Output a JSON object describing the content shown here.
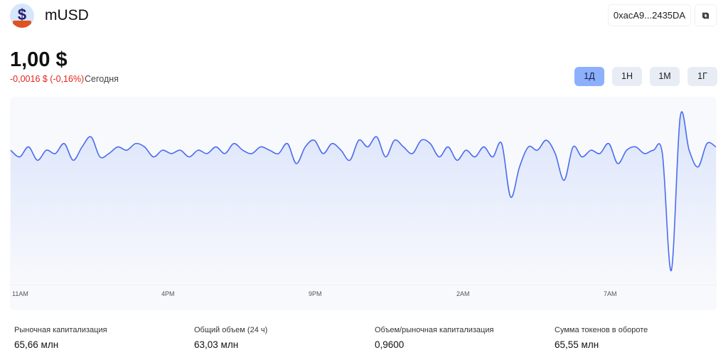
{
  "token": {
    "name": "mUSD",
    "address": "0xacA9...2435DA",
    "price": "1,00 $",
    "change": "-0,0016 $ (-0,16%)",
    "period_label": "Сегодня"
  },
  "tabs": [
    {
      "label": "1Д",
      "active": true
    },
    {
      "label": "1Н"
    },
    {
      "label": "1М"
    },
    {
      "label": "1Г"
    }
  ],
  "colors": {
    "line": "#4a6cf0",
    "negative": "#e5231b",
    "active_tab": "#8cb0fb"
  },
  "chart_data": {
    "type": "line",
    "title": "",
    "xlabel": "",
    "ylabel": "",
    "x_ticks": [
      "11AM",
      "4PM",
      "9PM",
      "2AM",
      "7AM"
    ],
    "ylim": [
      0.996,
      1.0016
    ],
    "values": [
      1.0,
      0.9998,
      1.0001,
      0.9997,
      1.0,
      0.9999,
      1.0002,
      0.9997,
      1.0001,
      1.0004,
      0.9998,
      0.9999,
      1.0001,
      1.0,
      1.0002,
      1.0001,
      0.9998,
      1.0,
      0.9999,
      1.0,
      0.9998,
      1.0,
      0.9999,
      1.0001,
      0.9999,
      1.0002,
      1.0,
      0.9999,
      1.0001,
      1.0,
      0.9999,
      1.0002,
      0.9996,
      1.0001,
      1.0003,
      0.9999,
      1.0002,
      1.0,
      0.9997,
      1.0003,
      1.0001,
      1.0004,
      0.9998,
      1.0003,
      1.0001,
      0.9999,
      1.0003,
      1.0002,
      0.9998,
      1.0001,
      0.9997,
      1.0,
      0.9998,
      1.0001,
      0.9998,
      1.0002,
      0.9986,
      0.9995,
      1.0001,
      1.0,
      1.0003,
      0.9999,
      0.9991,
      1.0001,
      0.9998,
      1.0,
      0.9999,
      1.0002,
      0.9996,
      1.0,
      1.0001,
      0.9999,
      1.0,
      0.9999,
      0.9964,
      1.001,
      1.0,
      0.9995,
      1.0002,
      1.0001
    ]
  },
  "stats": [
    {
      "label": "Рыночная капитализация",
      "value": "65,66 млн"
    },
    {
      "label": "Общий объем (24 ч)",
      "value": "63,03 млн"
    },
    {
      "label": "Объем/рыночная капитализация",
      "value": "0,9600"
    },
    {
      "label": "Сумма токенов в обороте",
      "value": "65,55 млн"
    }
  ]
}
